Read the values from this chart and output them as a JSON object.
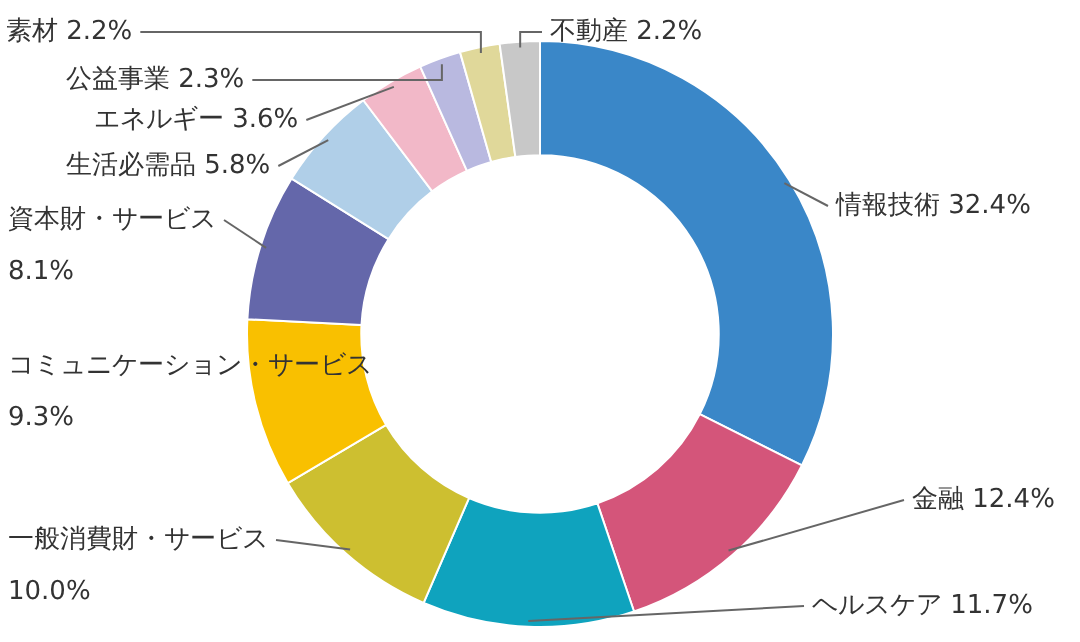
{
  "chart_data": {
    "type": "donut",
    "categories": [
      "情報技術",
      "金融",
      "ヘルスケア",
      "一般消費財・サービス",
      "コミュニケーション・サービス",
      "資本財・サービス",
      "生活必需品",
      "エネルギー",
      "公益事業",
      "素材",
      "不動産"
    ],
    "values": [
      32.4,
      12.4,
      11.7,
      10.0,
      9.3,
      8.1,
      5.8,
      3.6,
      2.3,
      2.2,
      2.2
    ],
    "value_labels": [
      "32.4%",
      "12.4%",
      "11.7%",
      "10.0%",
      "9.3%",
      "8.1%",
      "5.8%",
      "3.6%",
      "2.3%",
      "2.2%",
      "2.2%"
    ],
    "colors": [
      "#3a87c8",
      "#d4557a",
      "#0fa3be",
      "#cdbf30",
      "#f9c000",
      "#6467aa",
      "#b0cfe8",
      "#f2b8c8",
      "#b9b9e0",
      "#e0d89a",
      "#c8c8c8"
    ],
    "legend": false
  }
}
